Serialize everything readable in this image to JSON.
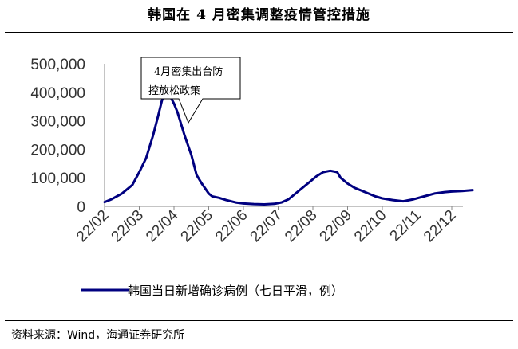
{
  "title": "韩国在 4 月密集调整疫情管控措施",
  "source": "资料来源：Wind，海通证券研究所",
  "legend": {
    "label": "韩国当日新增确诊病例（七日平滑，例）",
    "placement": "bottom"
  },
  "annotation": {
    "line1": "4月密集出台防",
    "line2": "控放松政策"
  },
  "chart_data": {
    "type": "line",
    "ylim": [
      0,
      500000
    ],
    "yticks": [
      "500,000",
      "400,000",
      "300,000",
      "200,000",
      "100,000",
      "0"
    ],
    "xticks": [
      "22/02",
      "22/03",
      "22/04",
      "22/05",
      "22/06",
      "22/07",
      "22/08",
      "22/09",
      "22/10",
      "22/11",
      "22/12"
    ],
    "series": [
      {
        "name": "韩国当日新增确诊病例（七日平滑，例）",
        "color": "#000080",
        "points": [
          [
            0.0,
            15000
          ],
          [
            0.2,
            25000
          ],
          [
            0.5,
            45000
          ],
          [
            0.8,
            75000
          ],
          [
            1.0,
            120000
          ],
          [
            1.2,
            170000
          ],
          [
            1.4,
            250000
          ],
          [
            1.55,
            320000
          ],
          [
            1.65,
            370000
          ],
          [
            1.75,
            400000
          ],
          [
            1.85,
            395000
          ],
          [
            2.0,
            360000
          ],
          [
            2.1,
            330000
          ],
          [
            2.3,
            250000
          ],
          [
            2.5,
            180000
          ],
          [
            2.65,
            110000
          ],
          [
            2.8,
            80000
          ],
          [
            3.0,
            45000
          ],
          [
            3.1,
            35000
          ],
          [
            3.3,
            30000
          ],
          [
            3.5,
            22000
          ],
          [
            3.8,
            13000
          ],
          [
            4.0,
            10000
          ],
          [
            4.3,
            8000
          ],
          [
            4.6,
            7000
          ],
          [
            4.9,
            9000
          ],
          [
            5.1,
            14000
          ],
          [
            5.3,
            25000
          ],
          [
            5.5,
            45000
          ],
          [
            5.7,
            65000
          ],
          [
            5.9,
            85000
          ],
          [
            6.1,
            105000
          ],
          [
            6.3,
            120000
          ],
          [
            6.5,
            125000
          ],
          [
            6.7,
            120000
          ],
          [
            6.8,
            100000
          ],
          [
            7.0,
            80000
          ],
          [
            7.2,
            65000
          ],
          [
            7.4,
            55000
          ],
          [
            7.6,
            45000
          ],
          [
            7.8,
            35000
          ],
          [
            8.0,
            28000
          ],
          [
            8.3,
            22000
          ],
          [
            8.6,
            18000
          ],
          [
            8.9,
            25000
          ],
          [
            9.2,
            35000
          ],
          [
            9.5,
            45000
          ],
          [
            9.8,
            50000
          ],
          [
            10.0,
            52000
          ],
          [
            10.3,
            54000
          ],
          [
            10.6,
            57000
          ]
        ]
      }
    ]
  }
}
